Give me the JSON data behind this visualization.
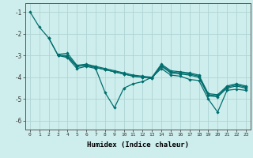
{
  "xlabel": "Humidex (Indice chaleur)",
  "xlim": [
    -0.5,
    23.5
  ],
  "ylim": [
    -6.4,
    -0.6
  ],
  "yticks": [
    -6,
    -5,
    -4,
    -3,
    -2,
    -1
  ],
  "xticks": [
    0,
    1,
    2,
    3,
    4,
    5,
    6,
    7,
    8,
    9,
    10,
    11,
    12,
    13,
    14,
    15,
    16,
    17,
    18,
    19,
    20,
    21,
    22,
    23
  ],
  "background_color": "#ceeeed",
  "grid_color": "#aed4d3",
  "line_color": "#006e6e",
  "line_width": 0.9,
  "marker_size": 2.2,
  "lines": [
    {
      "x": [
        0,
        1,
        2,
        3,
        4,
        5,
        6,
        7,
        8,
        9,
        10,
        11,
        12,
        13,
        14,
        15,
        16,
        17,
        18,
        19,
        20,
        21,
        22,
        23
      ],
      "y": [
        -1.0,
        -1.7,
        -2.2,
        -3.0,
        -3.1,
        -3.6,
        -3.5,
        -3.6,
        -4.7,
        -5.4,
        -4.5,
        -4.3,
        -4.2,
        -4.0,
        -3.6,
        -3.9,
        -3.95,
        -4.1,
        -4.15,
        -5.0,
        -5.6,
        -4.6,
        -4.55,
        -4.6
      ]
    },
    {
      "x": [
        2,
        3,
        4,
        5,
        6,
        7,
        8,
        9,
        10,
        11,
        12,
        13,
        14,
        15,
        16,
        17,
        18,
        19,
        20,
        21,
        22,
        23
      ],
      "y": [
        -2.2,
        -3.0,
        -3.05,
        -3.5,
        -3.45,
        -3.55,
        -3.65,
        -3.75,
        -3.85,
        -3.95,
        -4.0,
        -4.05,
        -3.5,
        -3.8,
        -3.85,
        -3.9,
        -4.0,
        -4.85,
        -4.9,
        -4.5,
        -4.4,
        -4.5
      ]
    },
    {
      "x": [
        3,
        4,
        5,
        6,
        7,
        8,
        9,
        10,
        11,
        12,
        13,
        14,
        15,
        16,
        17,
        18,
        19,
        20,
        21,
        22,
        23
      ],
      "y": [
        -3.0,
        -3.0,
        -3.5,
        -3.45,
        -3.55,
        -3.65,
        -3.75,
        -3.85,
        -3.95,
        -4.0,
        -4.05,
        -3.45,
        -3.75,
        -3.8,
        -3.85,
        -3.95,
        -4.8,
        -4.85,
        -4.45,
        -4.35,
        -4.45
      ]
    },
    {
      "x": [
        3,
        4,
        5,
        6,
        7,
        8,
        9,
        10,
        11,
        12,
        13,
        14,
        15,
        16,
        17,
        18,
        19,
        20,
        21,
        22,
        23
      ],
      "y": [
        -2.95,
        -2.9,
        -3.45,
        -3.4,
        -3.5,
        -3.6,
        -3.7,
        -3.8,
        -3.9,
        -3.95,
        -4.0,
        -3.4,
        -3.7,
        -3.75,
        -3.8,
        -3.9,
        -4.75,
        -4.8,
        -4.4,
        -4.3,
        -4.4
      ]
    }
  ]
}
